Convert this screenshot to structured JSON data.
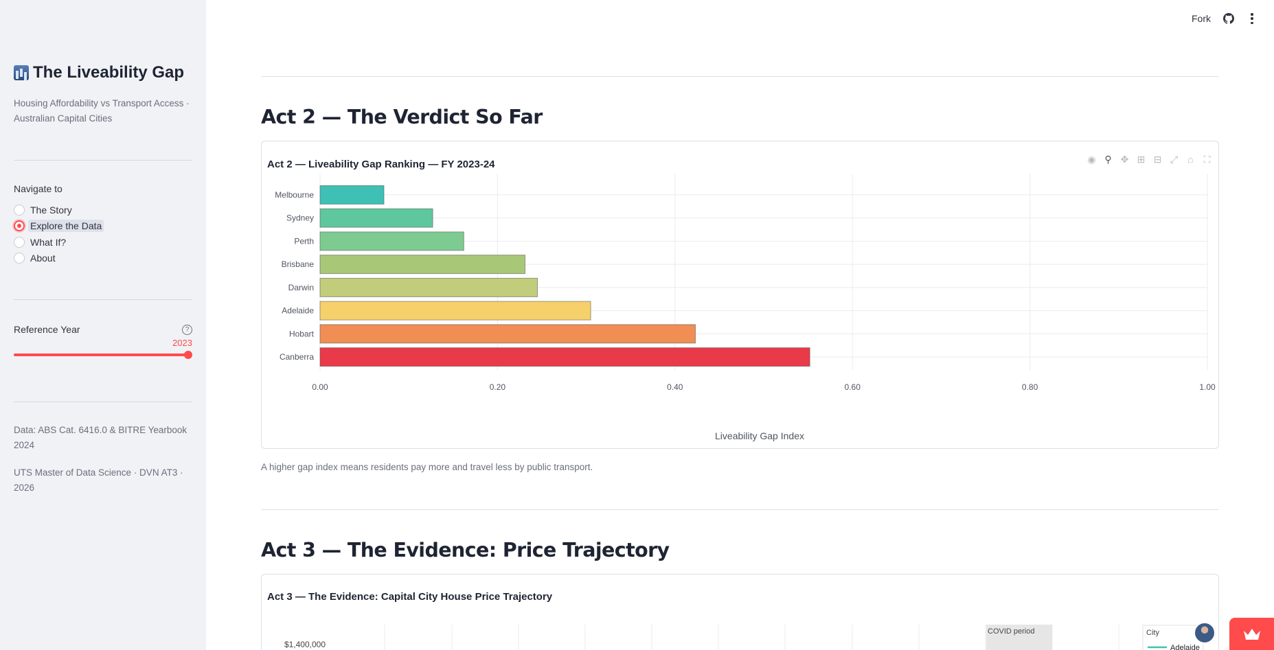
{
  "sidebar": {
    "title": "The Liveability Gap",
    "subtitle": "Housing Affordability vs Transport Access · Australian Capital Cities",
    "nav_label": "Navigate to",
    "nav_items": [
      {
        "label": "The Story",
        "selected": false
      },
      {
        "label": "Explore the Data",
        "selected": true
      },
      {
        "label": "What If?",
        "selected": false
      },
      {
        "label": "About",
        "selected": false
      }
    ],
    "ref_year_label": "Reference Year",
    "ref_year_value": "2023",
    "ref_year_fraction": 1.0,
    "footer_data": "Data: ABS Cat. 6416.0 & BITRE Yearbook 2024",
    "footer_credit": "UTS Master of Data Science · DVN AT3 · 2026"
  },
  "header": {
    "fork_label": "Fork",
    "github_icon": "github-icon",
    "menu_icon": "kebab-menu-icon"
  },
  "colors": {
    "accent": "#ff4b4b",
    "sidebar_bg": "#f0f2f6"
  },
  "act2": {
    "heading": "Act 2 — The Verdict So Far",
    "caption": "A higher gap index means residents pay more and travel less by public transport."
  },
  "act3": {
    "heading": "Act 3 — The Evidence: Price Trajectory"
  },
  "chart_data": [
    {
      "type": "bar",
      "orientation": "horizontal",
      "title": "Act 2 — Liveability Gap Ranking — FY 2023-24",
      "xlabel": "Liveability Gap Index",
      "ylabel": "",
      "categories": [
        "Melbourne",
        "Sydney",
        "Perth",
        "Brisbane",
        "Darwin",
        "Adelaide",
        "Hobart",
        "Canberra"
      ],
      "values": [
        0.072,
        0.127,
        0.162,
        0.231,
        0.245,
        0.305,
        0.423,
        0.552
      ],
      "colors": [
        "#3ec1b4",
        "#5fc79d",
        "#7ecb92",
        "#a9c877",
        "#c2cd7b",
        "#f6d06a",
        "#f08e54",
        "#e83a49"
      ],
      "xlim": [
        0,
        1
      ],
      "xticks": [
        "0.00",
        "0.20",
        "0.40",
        "0.60",
        "0.80",
        "1.00"
      ],
      "xtick_values": [
        0,
        0.2,
        0.4,
        0.6,
        0.8,
        1.0
      ],
      "grid": true,
      "legend": "none"
    },
    {
      "type": "line",
      "title": "Act 3 — The Evidence: Capital City House Price Trajectory",
      "yticks": [
        "$1,400,000"
      ],
      "annotation": "COVID period",
      "legend_title": "City",
      "legend_items": [
        "Adelaide"
      ],
      "legend": "top-right"
    }
  ],
  "modebar_icons": [
    "camera-icon",
    "zoom-icon",
    "pan-icon",
    "zoom-in-icon",
    "zoom-out-icon",
    "autoscale-icon",
    "reset-axes-icon",
    "fullscreen-icon"
  ]
}
